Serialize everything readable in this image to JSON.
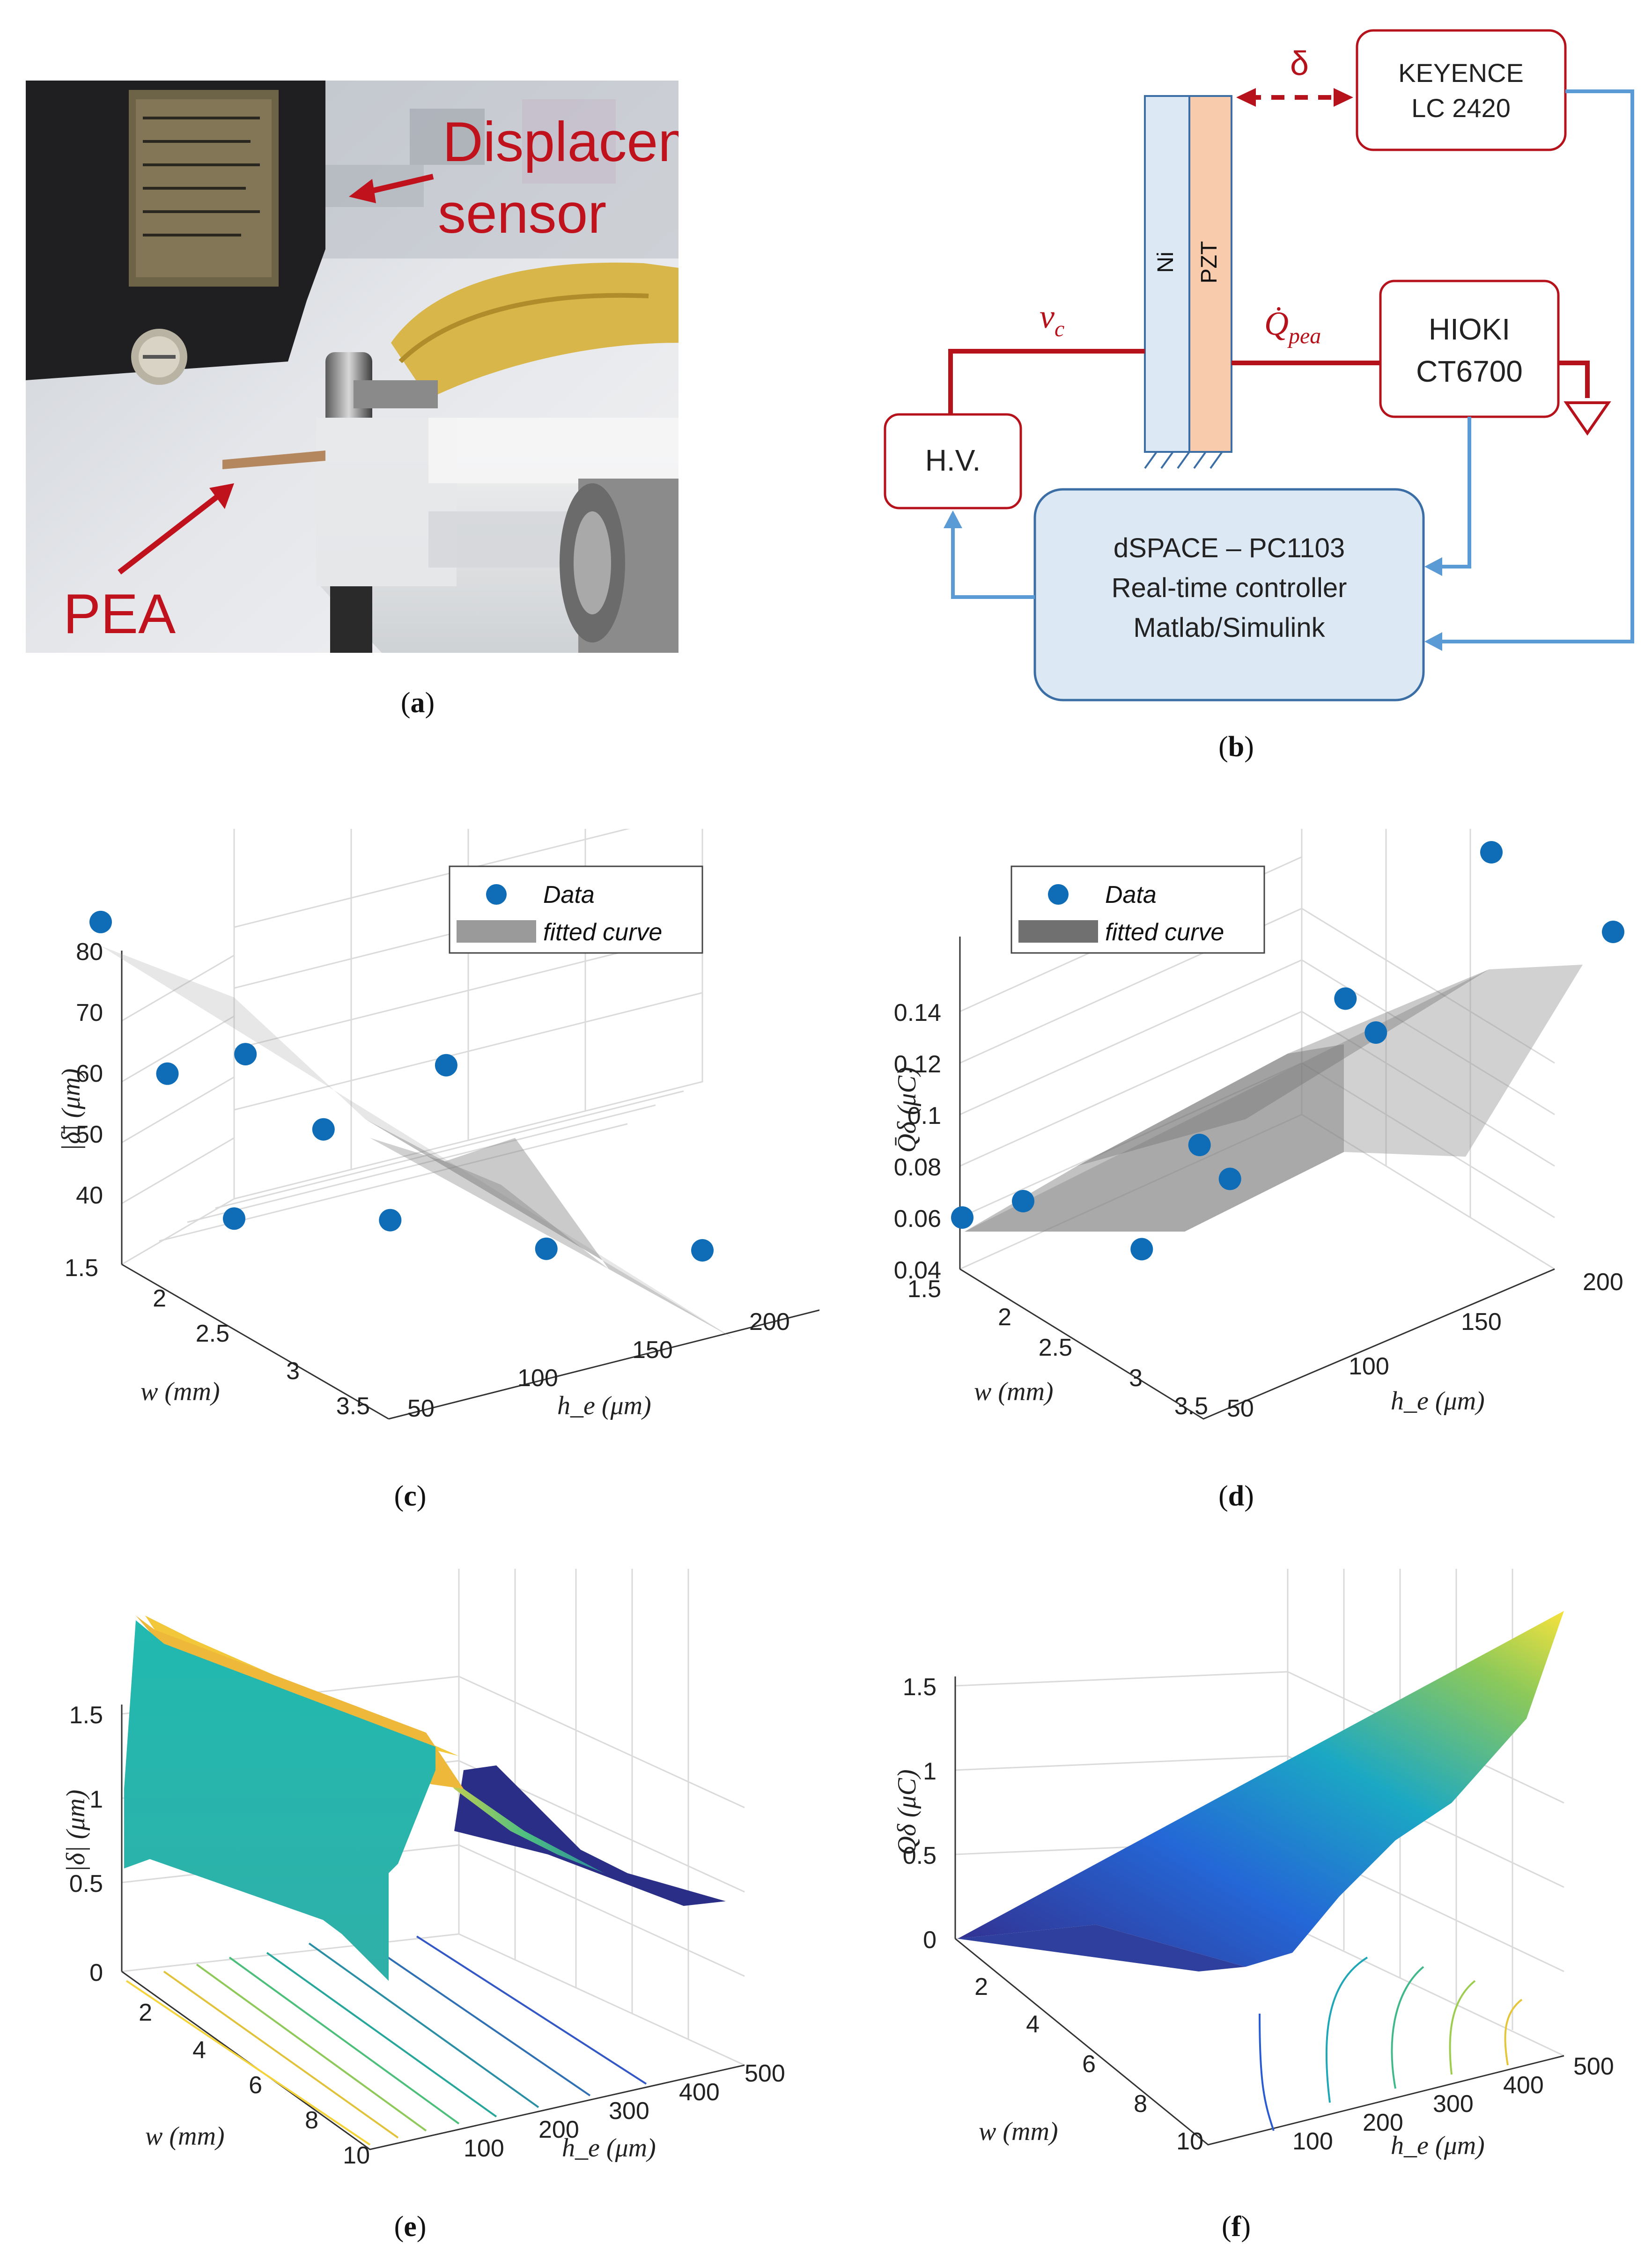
{
  "panel_a": {
    "label_displacement": "Displacement",
    "label_sensor": "sensor",
    "label_pea": "PEA",
    "caption_letter": "a"
  },
  "panel_b": {
    "delta": "δ",
    "keyence_line1": "KEYENCE",
    "keyence_line2": "LC 2420",
    "ni": "Ni",
    "pzt": "PZT",
    "vc": "v",
    "vc_sub": "c",
    "qpea": "Q̇",
    "qpea_sub": "pea",
    "hioki_line1": "HIOKI",
    "hioki_line2": "CT6700",
    "hv": "H.V.",
    "dspace_line1": "dSPACE – PC1103",
    "dspace_line2": "Real-time controller",
    "dspace_line3": "Matlab/Simulink",
    "caption_letter": "b",
    "colors": {
      "red": "#b5121b",
      "blue": "#5b9bd5",
      "box": "#dce9f5",
      "ni": "#dce9f5",
      "pzt": "#f7cbac"
    }
  },
  "panel_c": {
    "caption_letter": "c"
  },
  "panel_d": {
    "caption_letter": "d"
  },
  "panel_e": {
    "caption_letter": "e"
  },
  "panel_f": {
    "caption_letter": "f"
  },
  "chart_data": [
    {
      "id": "c",
      "type": "scatter",
      "title": "",
      "legend": [
        "Data",
        "fitted curve"
      ],
      "legend_position": "top-right",
      "zlabel": "|δ̄| (μm)",
      "xlabel": "h_e (μm)",
      "ylabel": "w (mm)",
      "z_ticks": [
        "40",
        "50",
        "60",
        "70",
        "80"
      ],
      "x_ticks": [
        "50",
        "100",
        "150",
        "200"
      ],
      "y_ticks": [
        "1.5",
        "2",
        "2.5",
        "3",
        "3.5"
      ],
      "points": [
        {
          "he": 50,
          "w": 1.5,
          "z": 83
        },
        {
          "he": 50,
          "w": 2.5,
          "z": 72
        },
        {
          "he": 75,
          "w": 2.5,
          "z": 72
        },
        {
          "he": 50,
          "w": 3.5,
          "z": 62
        },
        {
          "he": 100,
          "w": 2.5,
          "z": 58
        },
        {
          "he": 100,
          "w": 3.5,
          "z": 56
        },
        {
          "he": 150,
          "w": 2.0,
          "z": 56
        },
        {
          "he": 150,
          "w": 3.5,
          "z": 46
        },
        {
          "he": 200,
          "w": 3.5,
          "z": 40
        }
      ]
    },
    {
      "id": "d",
      "type": "scatter",
      "title": "",
      "legend": [
        "Data",
        "fitted curve"
      ],
      "legend_position": "top-left",
      "zlabel": "Q̄δ (μC)",
      "xlabel": "h_e (μm)",
      "ylabel": "w (mm)",
      "z_ticks": [
        "0.04",
        "0.06",
        "0.08",
        "0.1",
        "0.12",
        "0.14"
      ],
      "x_ticks": [
        "50",
        "100",
        "150",
        "200"
      ],
      "y_ticks": [
        "1.5",
        "2",
        "2.5",
        "3",
        "3.5"
      ],
      "points": [
        {
          "he": 50,
          "w": 1.5,
          "z": 0.035
        },
        {
          "he": 50,
          "w": 2.5,
          "z": 0.055
        },
        {
          "he": 75,
          "w": 3.0,
          "z": 0.04
        },
        {
          "he": 100,
          "w": 2.5,
          "z": 0.065
        },
        {
          "he": 100,
          "w": 3.0,
          "z": 0.06
        },
        {
          "he": 150,
          "w": 2.0,
          "z": 0.1
        },
        {
          "he": 150,
          "w": 2.5,
          "z": 0.095
        },
        {
          "he": 200,
          "w": 1.5,
          "z": 0.135
        },
        {
          "he": 200,
          "w": 3.5,
          "z": 0.135
        }
      ]
    },
    {
      "id": "e",
      "type": "surface",
      "zlabel": "|δ| (μm)",
      "xlabel": "h_e (μm)",
      "ylabel": "w (mm)",
      "z_ticks": [
        "0",
        "0.5",
        "1",
        "1.5"
      ],
      "x_ticks": [
        "100",
        "200",
        "300",
        "400",
        "500"
      ],
      "y_ticks": [
        "2",
        "4",
        "6",
        "8",
        "10"
      ]
    },
    {
      "id": "f",
      "type": "surface",
      "zlabel": "Qδ (μC)",
      "xlabel": "h_e (μm)",
      "ylabel": "w (mm)",
      "z_ticks": [
        "0",
        "0.5",
        "1",
        "1.5"
      ],
      "x_ticks": [
        "100",
        "200",
        "300",
        "400",
        "500"
      ],
      "y_ticks": [
        "2",
        "4",
        "6",
        "8",
        "10"
      ]
    }
  ]
}
